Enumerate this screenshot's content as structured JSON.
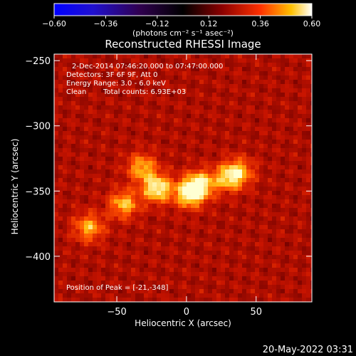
{
  "chart_data": {
    "type": "heatmap",
    "title": "Reconstructed RHESSI Image",
    "xlabel": "Heliocentric X (arcsec)",
    "ylabel": "Heliocentric Y (arcsec)",
    "xlim": [
      -95,
      90
    ],
    "ylim": [
      -435,
      -245
    ],
    "xticks": [
      -50,
      0,
      50
    ],
    "yticks": [
      -250,
      -300,
      -350,
      -400
    ],
    "xtick_labels": [
      "−50",
      "0",
      "50"
    ],
    "ytick_labels": [
      "−250",
      "−300",
      "−350",
      "−400"
    ],
    "colorbar": {
      "min": -0.6,
      "max": 0.6,
      "ticks": [
        -0.6,
        -0.36,
        -0.12,
        0.12,
        0.36,
        0.6
      ],
      "tick_labels": [
        "−0.60",
        "−0.36",
        "−0.12",
        "0.12",
        "0.36",
        "0.60"
      ],
      "units_label": "(photons cm⁻² s⁻¹ asec⁻²)"
    },
    "annotations": [
      "2-Dec-2014 07:46:20.000 to 07:47:00.000",
      "Detectors: 3F 6F 9F, Att 0",
      "Energy Range: 3.0 - 6.0 keV",
      "Clean",
      "Total counts: 6.93E+03",
      "Position of Peak = [-21,-348]"
    ],
    "sources": [
      {
        "x": -21,
        "y": -348,
        "intensity": 1.0
      },
      {
        "x": 2,
        "y": -352,
        "intensity": 0.95
      },
      {
        "x": 10,
        "y": -345,
        "intensity": 0.85
      },
      {
        "x": -32,
        "y": -332,
        "intensity": 0.7
      },
      {
        "x": -45,
        "y": -360,
        "intensity": 0.75
      },
      {
        "x": 30,
        "y": -340,
        "intensity": 0.7
      },
      {
        "x": 38,
        "y": -335,
        "intensity": 0.6
      },
      {
        "x": -70,
        "y": -378,
        "intensity": 0.7
      }
    ],
    "peak": {
      "x": -21,
      "y": -348
    },
    "grid": false
  },
  "footer": {
    "date": "20-May-2022 03:31"
  }
}
